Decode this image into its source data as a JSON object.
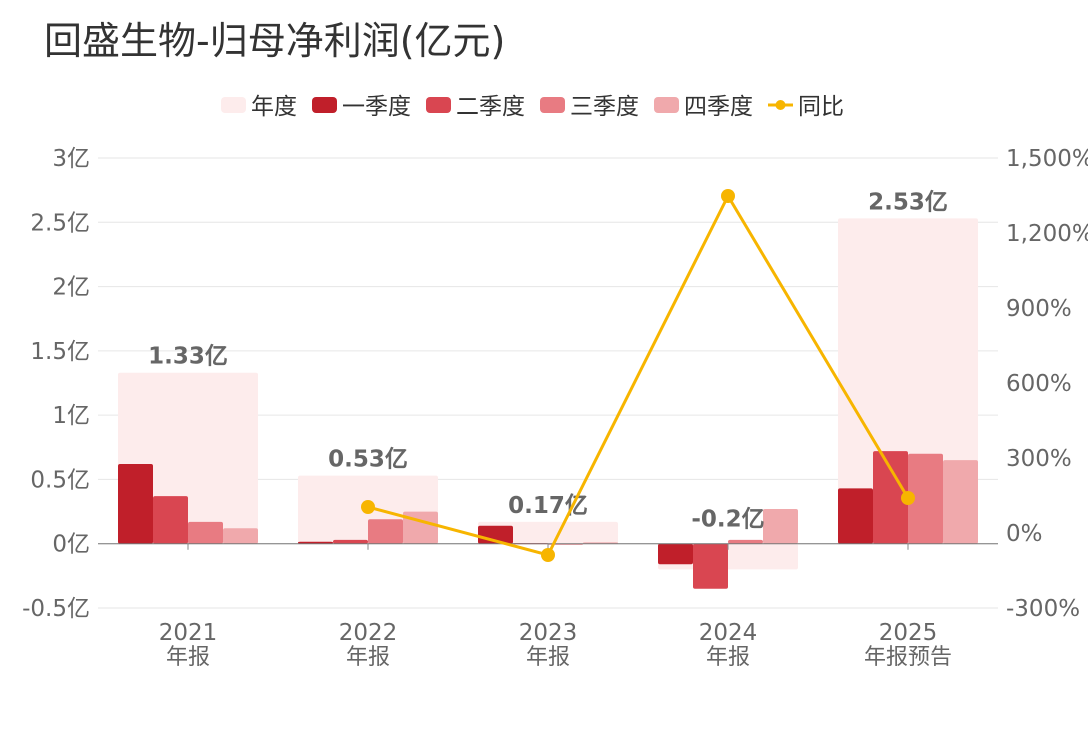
{
  "chart_data": {
    "type": "bar",
    "title": "回盛生物-归母净利润(亿元)",
    "categories": [
      [
        "2021",
        "年报"
      ],
      [
        "2022",
        "年报"
      ],
      [
        "2023",
        "年报"
      ],
      [
        "2024",
        "年报"
      ],
      [
        "2025",
        "年报预告"
      ]
    ],
    "annual": {
      "name": "年度",
      "values": [
        1.33,
        0.53,
        0.17,
        -0.2,
        2.53
      ],
      "labels": [
        "1.33亿",
        "0.53亿",
        "0.17亿",
        "-0.2亿",
        "2.53亿"
      ],
      "color": "#fdecec"
    },
    "series": [
      {
        "name": "一季度",
        "values": [
          0.62,
          0.015,
          0.14,
          -0.16,
          0.43
        ],
        "color": "#c01f2a"
      },
      {
        "name": "二季度",
        "values": [
          0.37,
          0.03,
          0.005,
          -0.35,
          0.72
        ],
        "color": "#d94651"
      },
      {
        "name": "三季度",
        "values": [
          0.17,
          0.19,
          -0.005,
          0.03,
          0.7
        ],
        "color": "#e87b82"
      },
      {
        "name": "四季度",
        "values": [
          0.12,
          0.25,
          0.01,
          0.27,
          0.65
        ],
        "color": "#f0a9ac"
      }
    ],
    "yoy": {
      "name": "同比",
      "values": [
        null,
        104,
        -88,
        1348,
        140
      ],
      "color": "#f7b500"
    },
    "ylim": [
      -0.5,
      3
    ],
    "yticks": [
      {
        "v": 3,
        "l": "3亿"
      },
      {
        "v": 2.5,
        "l": "2.5亿"
      },
      {
        "v": 2,
        "l": "2亿"
      },
      {
        "v": 1.5,
        "l": "1.5亿"
      },
      {
        "v": 1,
        "l": "1亿"
      },
      {
        "v": 0.5,
        "l": "0.5亿"
      },
      {
        "v": 0,
        "l": "0亿"
      },
      {
        "v": -0.5,
        "l": "-0.5亿"
      }
    ],
    "y2lim": [
      -300,
      1500
    ],
    "y2ticks": [
      {
        "v": 1500,
        "l": "1,500%"
      },
      {
        "v": 1200,
        "l": "1,200%"
      },
      {
        "v": 900,
        "l": "900%"
      },
      {
        "v": 600,
        "l": "600%"
      },
      {
        "v": 300,
        "l": "300%"
      },
      {
        "v": 0,
        "l": "0%"
      },
      {
        "v": -300,
        "l": "-300%"
      }
    ],
    "legend": "top-center",
    "grid": true
  }
}
